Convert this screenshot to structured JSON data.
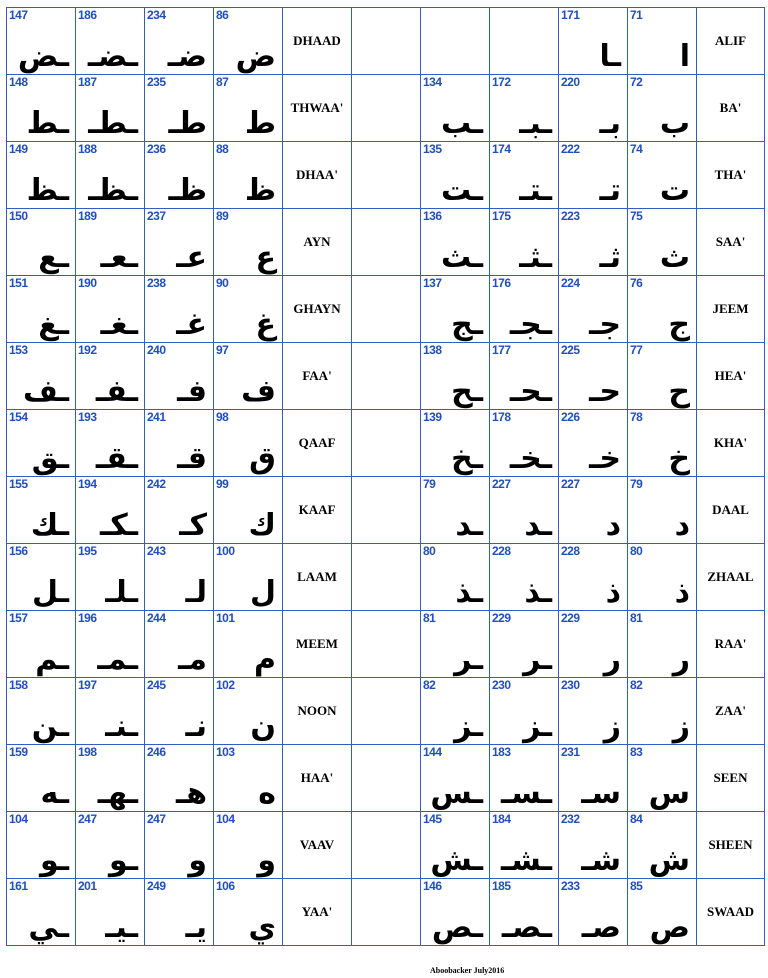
{
  "credit": "Aboobacker July2016",
  "colors": {
    "grid_line": "#2f5fbf",
    "number": "#1f4fbf",
    "glyph": "#000000"
  },
  "left_rows": [
    {
      "name": "DHAAD",
      "cells": [
        {
          "num": "147",
          "glyph": "ـض"
        },
        {
          "num": "186",
          "glyph": "ـضـ"
        },
        {
          "num": "234",
          "glyph": "ضـ"
        },
        {
          "num": "86",
          "glyph": "ض"
        }
      ]
    },
    {
      "name": "THWAA'",
      "cells": [
        {
          "num": "148",
          "glyph": "ـط"
        },
        {
          "num": "187",
          "glyph": "ـطـ"
        },
        {
          "num": "235",
          "glyph": "طـ"
        },
        {
          "num": "87",
          "glyph": "ط"
        }
      ]
    },
    {
      "name": "DHAA'",
      "cells": [
        {
          "num": "149",
          "glyph": "ـظ"
        },
        {
          "num": "188",
          "glyph": "ـظـ"
        },
        {
          "num": "236",
          "glyph": "ظـ"
        },
        {
          "num": "88",
          "glyph": "ظ"
        }
      ]
    },
    {
      "name": "AYN",
      "cells": [
        {
          "num": "150",
          "glyph": "ـع"
        },
        {
          "num": "189",
          "glyph": "ـعـ"
        },
        {
          "num": "237",
          "glyph": "عـ"
        },
        {
          "num": "89",
          "glyph": "ع"
        }
      ]
    },
    {
      "name": "GHAYN",
      "cells": [
        {
          "num": "151",
          "glyph": "ـغ"
        },
        {
          "num": "190",
          "glyph": "ـغـ"
        },
        {
          "num": "238",
          "glyph": "غـ"
        },
        {
          "num": "90",
          "glyph": "غ"
        }
      ]
    },
    {
      "name": "FAA'",
      "cells": [
        {
          "num": "153",
          "glyph": "ـف"
        },
        {
          "num": "192",
          "glyph": "ـفـ"
        },
        {
          "num": "240",
          "glyph": "فـ"
        },
        {
          "num": "97",
          "glyph": "ف"
        }
      ]
    },
    {
      "name": "QAAF",
      "cells": [
        {
          "num": "154",
          "glyph": "ـق"
        },
        {
          "num": "193",
          "glyph": "ـقـ"
        },
        {
          "num": "241",
          "glyph": "قـ"
        },
        {
          "num": "98",
          "glyph": "ق"
        }
      ]
    },
    {
      "name": "KAAF",
      "cells": [
        {
          "num": "155",
          "glyph": "ـك"
        },
        {
          "num": "194",
          "glyph": "ـكـ"
        },
        {
          "num": "242",
          "glyph": "كـ"
        },
        {
          "num": "99",
          "glyph": "ك"
        }
      ]
    },
    {
      "name": "LAAM",
      "cells": [
        {
          "num": "156",
          "glyph": "ـل"
        },
        {
          "num": "195",
          "glyph": "ـلـ"
        },
        {
          "num": "243",
          "glyph": "لـ"
        },
        {
          "num": "100",
          "glyph": "ل"
        }
      ]
    },
    {
      "name": "MEEM",
      "cells": [
        {
          "num": "157",
          "glyph": "ـم"
        },
        {
          "num": "196",
          "glyph": "ـمـ"
        },
        {
          "num": "244",
          "glyph": "مـ"
        },
        {
          "num": "101",
          "glyph": "م"
        }
      ]
    },
    {
      "name": "NOON",
      "cells": [
        {
          "num": "158",
          "glyph": "ـن"
        },
        {
          "num": "197",
          "glyph": "ـنـ"
        },
        {
          "num": "245",
          "glyph": "نـ"
        },
        {
          "num": "102",
          "glyph": "ن"
        }
      ]
    },
    {
      "name": "HAA'",
      "cells": [
        {
          "num": "159",
          "glyph": "ـه"
        },
        {
          "num": "198",
          "glyph": "ـهـ"
        },
        {
          "num": "246",
          "glyph": "هـ"
        },
        {
          "num": "103",
          "glyph": "ه"
        }
      ]
    },
    {
      "name": "VAAV",
      "cells": [
        {
          "num": "104",
          "glyph": "ـو"
        },
        {
          "num": "247",
          "glyph": "ـو"
        },
        {
          "num": "247",
          "glyph": "و"
        },
        {
          "num": "104",
          "glyph": "و"
        }
      ]
    },
    {
      "name": "YAA'",
      "cells": [
        {
          "num": "161",
          "glyph": "ـي"
        },
        {
          "num": "201",
          "glyph": "ـيـ"
        },
        {
          "num": "249",
          "glyph": "يـ"
        },
        {
          "num": "106",
          "glyph": "ي"
        }
      ]
    }
  ],
  "right_rows": [
    {
      "name": "ALIF",
      "cells": [
        {
          "num": "",
          "glyph": ""
        },
        {
          "num": "",
          "glyph": ""
        },
        {
          "num": "171",
          "glyph": "ـا"
        },
        {
          "num": "71",
          "glyph": "ا"
        }
      ]
    },
    {
      "name": "BA'",
      "cells": [
        {
          "num": "134",
          "glyph": "ـب"
        },
        {
          "num": "172",
          "glyph": "ـبـ"
        },
        {
          "num": "220",
          "glyph": "بـ"
        },
        {
          "num": "72",
          "glyph": "ب"
        }
      ]
    },
    {
      "name": "THA'",
      "cells": [
        {
          "num": "135",
          "glyph": "ـت"
        },
        {
          "num": "174",
          "glyph": "ـتـ"
        },
        {
          "num": "222",
          "glyph": "تـ"
        },
        {
          "num": "74",
          "glyph": "ت"
        }
      ]
    },
    {
      "name": "SAA'",
      "cells": [
        {
          "num": "136",
          "glyph": "ـث"
        },
        {
          "num": "175",
          "glyph": "ـثـ"
        },
        {
          "num": "223",
          "glyph": "ثـ"
        },
        {
          "num": "75",
          "glyph": "ث"
        }
      ]
    },
    {
      "name": "JEEM",
      "cells": [
        {
          "num": "137",
          "glyph": "ـج"
        },
        {
          "num": "176",
          "glyph": "ـجـ"
        },
        {
          "num": "224",
          "glyph": "جـ"
        },
        {
          "num": "76",
          "glyph": "ج"
        }
      ]
    },
    {
      "name": "HEA'",
      "cells": [
        {
          "num": "138",
          "glyph": "ـح"
        },
        {
          "num": "177",
          "glyph": "ـحـ"
        },
        {
          "num": "225",
          "glyph": "حـ"
        },
        {
          "num": "77",
          "glyph": "ح"
        }
      ]
    },
    {
      "name": "KHA'",
      "cells": [
        {
          "num": "139",
          "glyph": "ـخ"
        },
        {
          "num": "178",
          "glyph": "ـخـ"
        },
        {
          "num": "226",
          "glyph": "خـ"
        },
        {
          "num": "78",
          "glyph": "خ"
        }
      ]
    },
    {
      "name": "DAAL",
      "cells": [
        {
          "num": "79",
          "glyph": "ـد"
        },
        {
          "num": "227",
          "glyph": "ـد"
        },
        {
          "num": "227",
          "glyph": "د"
        },
        {
          "num": "79",
          "glyph": "د"
        }
      ]
    },
    {
      "name": "ZHAAL",
      "cells": [
        {
          "num": "80",
          "glyph": "ـذ"
        },
        {
          "num": "228",
          "glyph": "ـذ"
        },
        {
          "num": "228",
          "glyph": "ذ"
        },
        {
          "num": "80",
          "glyph": "ذ"
        }
      ]
    },
    {
      "name": "RAA'",
      "cells": [
        {
          "num": "81",
          "glyph": "ـر"
        },
        {
          "num": "229",
          "glyph": "ـر"
        },
        {
          "num": "229",
          "glyph": "ر"
        },
        {
          "num": "81",
          "glyph": "ر"
        }
      ]
    },
    {
      "name": "ZAA'",
      "cells": [
        {
          "num": "82",
          "glyph": "ـز"
        },
        {
          "num": "230",
          "glyph": "ـز"
        },
        {
          "num": "230",
          "glyph": "ز"
        },
        {
          "num": "82",
          "glyph": "ز"
        }
      ]
    },
    {
      "name": "SEEN",
      "cells": [
        {
          "num": "144",
          "glyph": "ـس"
        },
        {
          "num": "183",
          "glyph": "ـسـ"
        },
        {
          "num": "231",
          "glyph": "سـ"
        },
        {
          "num": "83",
          "glyph": "س"
        }
      ]
    },
    {
      "name": "SHEEN",
      "cells": [
        {
          "num": "145",
          "glyph": "ـش"
        },
        {
          "num": "184",
          "glyph": "ـشـ"
        },
        {
          "num": "232",
          "glyph": "شـ"
        },
        {
          "num": "84",
          "glyph": "ش"
        }
      ]
    },
    {
      "name": "SWAAD",
      "cells": [
        {
          "num": "146",
          "glyph": "ـص"
        },
        {
          "num": "185",
          "glyph": "ـصـ"
        },
        {
          "num": "233",
          "glyph": "صـ"
        },
        {
          "num": "85",
          "glyph": "ص"
        }
      ]
    }
  ]
}
